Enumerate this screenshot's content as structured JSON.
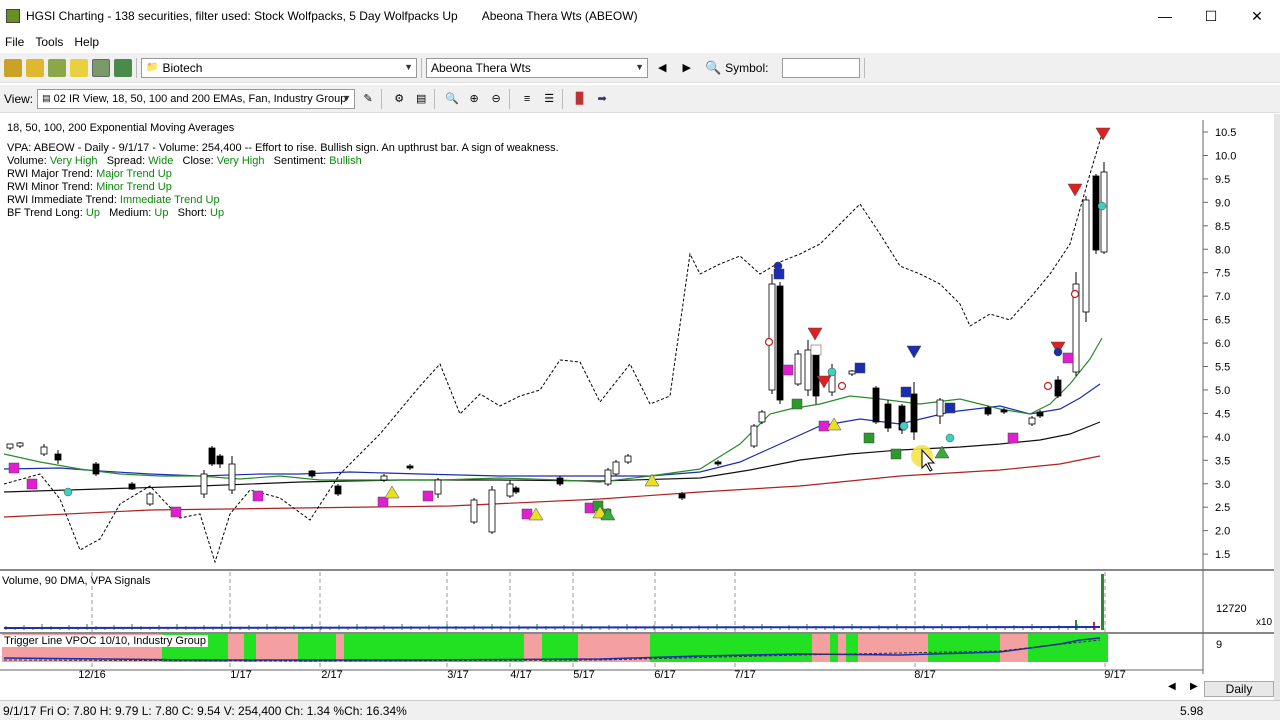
{
  "window": {
    "title": "HGSI Charting - 138 securities, filter used: Stock Wolfpacks, 5 Day Wolfpacks Up",
    "security_title": "Abeona Thera Wts (ABEOW)",
    "min_icon": "minimize-icon",
    "max_icon": "maximize-icon",
    "close_icon": "close-icon"
  },
  "menu": {
    "file": "File",
    "tools": "Tools",
    "help": "Help"
  },
  "toolbar1": {
    "industry_select": "Biotech",
    "security_select": "Abeona Thera Wts",
    "symbol_label": "Symbol:",
    "symbol_value": ""
  },
  "toolbar2": {
    "view_label": "View:",
    "view_select": "02 IR View, 18, 50, 100 and 200 EMAs, Fan, Industry Group"
  },
  "chart": {
    "header": "18, 50, 100, 200 Exponential Moving Averages",
    "vpa_line": "VPA: ABEOW - Daily - 9/1/17 - Volume: 254,400 -- Effort to rise. Bullish sign. An upthrust bar. A sign of weakness.",
    "volume_label": "Volume:",
    "volume_value": "Very High",
    "spread_label": "Spread:",
    "spread_value": "Wide",
    "close_label": "Close:",
    "close_value": "Very High",
    "sentiment_label": "Sentiment:",
    "sentiment_value": "Bullish",
    "rwi_major_label": "RWI Major Trend:",
    "rwi_major_value": "Major Trend Up",
    "rwi_minor_label": "RWI Minor Trend:",
    "rwi_minor_value": "Minor Trend Up",
    "rwi_imm_label": "RWI Immediate Trend:",
    "rwi_imm_value": "Immediate Trend Up",
    "bf_label": "BF Trend Long:",
    "bf_long": "Up",
    "bf_medium_label": "Medium:",
    "bf_medium": "Up",
    "bf_short_label": "Short:",
    "bf_short": "Up",
    "price_ticks": [
      "10.5",
      "10.0",
      "9.5",
      "9.0",
      "8.5",
      "8.0",
      "7.5",
      "7.0",
      "6.5",
      "6.0",
      "5.5",
      "5.0",
      "4.5",
      "4.0",
      "3.5",
      "3.0",
      "2.5",
      "2.0",
      "1.5"
    ],
    "volume_pane_label": "Volume, 90 DMA, VPA Signals",
    "volume_tick": "12720",
    "volume_mult": "x10",
    "trigger_pane_label": "Trigger Line VPOC 10/10, Industry Group",
    "trigger_tick": "9",
    "date_ticks": [
      "12/16",
      "1/17",
      "2/17",
      "3/17",
      "4/17",
      "5/17",
      "6/17",
      "7/17",
      "8/17",
      "9/17"
    ],
    "colors": {
      "ema18": "#2a8a2a",
      "ema50": "#1b2db0",
      "ema100": "#111111",
      "ema200": "#b02020",
      "industry": "#000000"
    }
  },
  "bottom": {
    "daily_button": "Daily"
  },
  "status": {
    "left": "9/1/17 Fri O: 7.80 H: 9.79 L: 7.80 C: 9.54 V: 254,400 Ch: 1.34 %Ch: 16.34%",
    "right": "5.98"
  }
}
